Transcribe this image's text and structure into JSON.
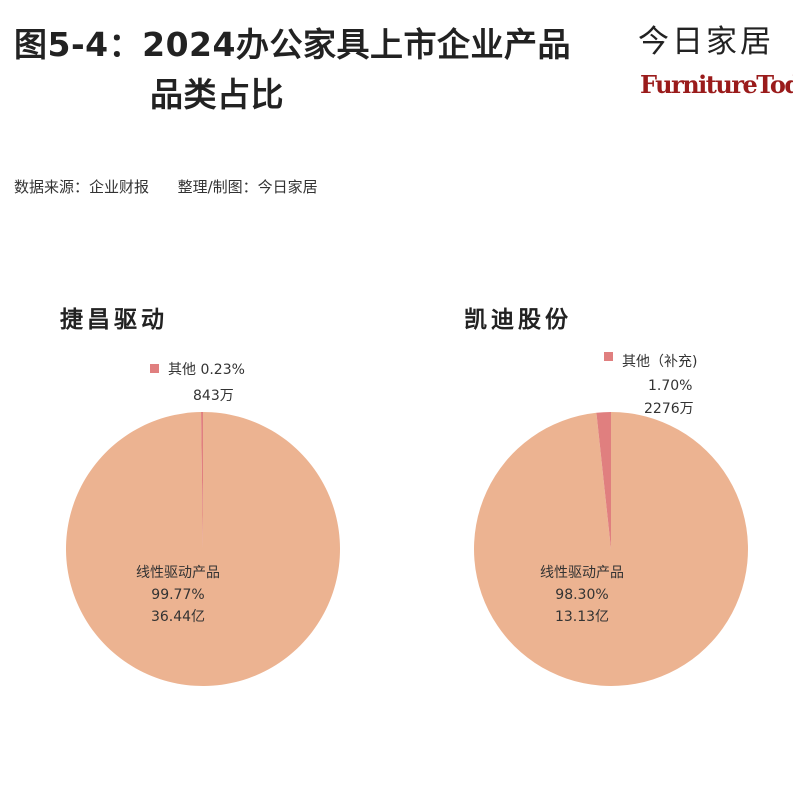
{
  "header": {
    "title_line1": "图5-4：2024办公家具上市企业产品",
    "title_line2": "品类占比",
    "brand_cn": "今日家居",
    "brand_en": "FurnitureToday",
    "source": "数据来源：企业财报      整理/制图：今日家居"
  },
  "colors": {
    "main_slice": "#ecb391",
    "other_slice": "#e07f7f"
  },
  "chart_data": [
    {
      "type": "pie",
      "title": "捷昌驱动",
      "slices": [
        {
          "name": "线性驱动产品",
          "percent": 99.77,
          "percent_label": "99.77%",
          "amount_label": "36.44亿"
        },
        {
          "name": "其他",
          "percent": 0.23,
          "percent_label": "0.23%",
          "amount_label": "843万"
        }
      ]
    },
    {
      "type": "pie",
      "title": "凯迪股份",
      "slices": [
        {
          "name": "线性驱动产品",
          "percent": 98.3,
          "percent_label": "98.30%",
          "amount_label": "13.13亿"
        },
        {
          "name": "其他（补充)",
          "percent": 1.7,
          "percent_label": "1.70%",
          "amount_label": "2276万"
        }
      ]
    }
  ]
}
